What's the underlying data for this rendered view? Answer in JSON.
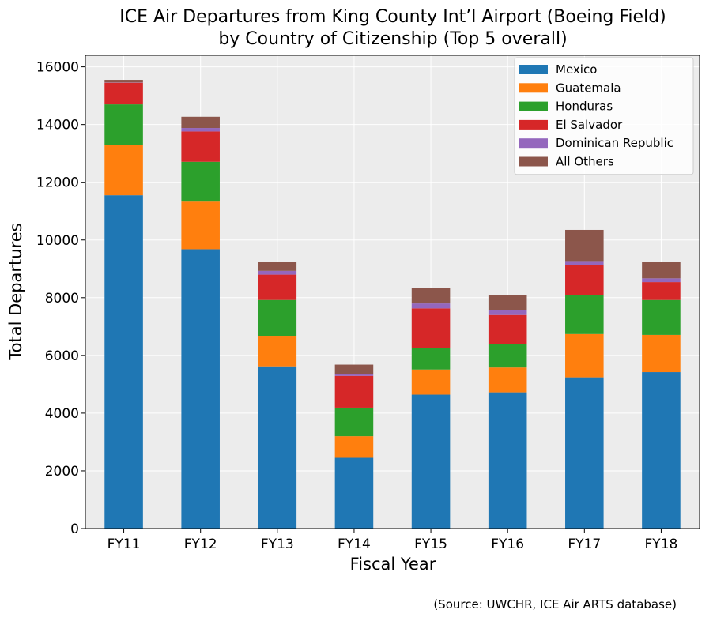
{
  "chart_data": {
    "type": "bar",
    "stacked": true,
    "title_line1": "ICE Air Departures from King County Int’l Airport (Boeing Field)",
    "title_line2": "by Country of Citizenship (Top 5 overall)",
    "xlabel": "Fiscal Year",
    "ylabel": "Total Departures",
    "source_note": "(Source: UWCHR, ICE Air ARTS database)",
    "ylim": [
      0,
      16400
    ],
    "yticks": [
      0,
      2000,
      4000,
      6000,
      8000,
      10000,
      12000,
      14000,
      16000
    ],
    "grid": true,
    "legend_position": "top-right",
    "categories": [
      "FY11",
      "FY12",
      "FY13",
      "FY14",
      "FY15",
      "FY16",
      "FY17",
      "FY18"
    ],
    "series": [
      {
        "name": "Mexico",
        "color": "#1f77b4",
        "values": [
          11550,
          9680,
          5620,
          2450,
          4640,
          4720,
          5240,
          5420
        ]
      },
      {
        "name": "Guatemala",
        "color": "#ff7f0e",
        "values": [
          1730,
          1650,
          1060,
          750,
          870,
          860,
          1500,
          1290
        ]
      },
      {
        "name": "Honduras",
        "color": "#2ca02c",
        "values": [
          1420,
          1380,
          1240,
          990,
          760,
          800,
          1360,
          1210
        ]
      },
      {
        "name": "El Salvador",
        "color": "#d62728",
        "values": [
          750,
          1050,
          880,
          1100,
          1360,
          1020,
          1040,
          620
        ]
      },
      {
        "name": "Dominican Republic",
        "color": "#9467bd",
        "values": [
          10,
          120,
          130,
          60,
          170,
          180,
          130,
          130
        ]
      },
      {
        "name": "All Others",
        "color": "#8c564b",
        "values": [
          90,
          390,
          300,
          330,
          540,
          510,
          1080,
          560
        ]
      }
    ]
  }
}
